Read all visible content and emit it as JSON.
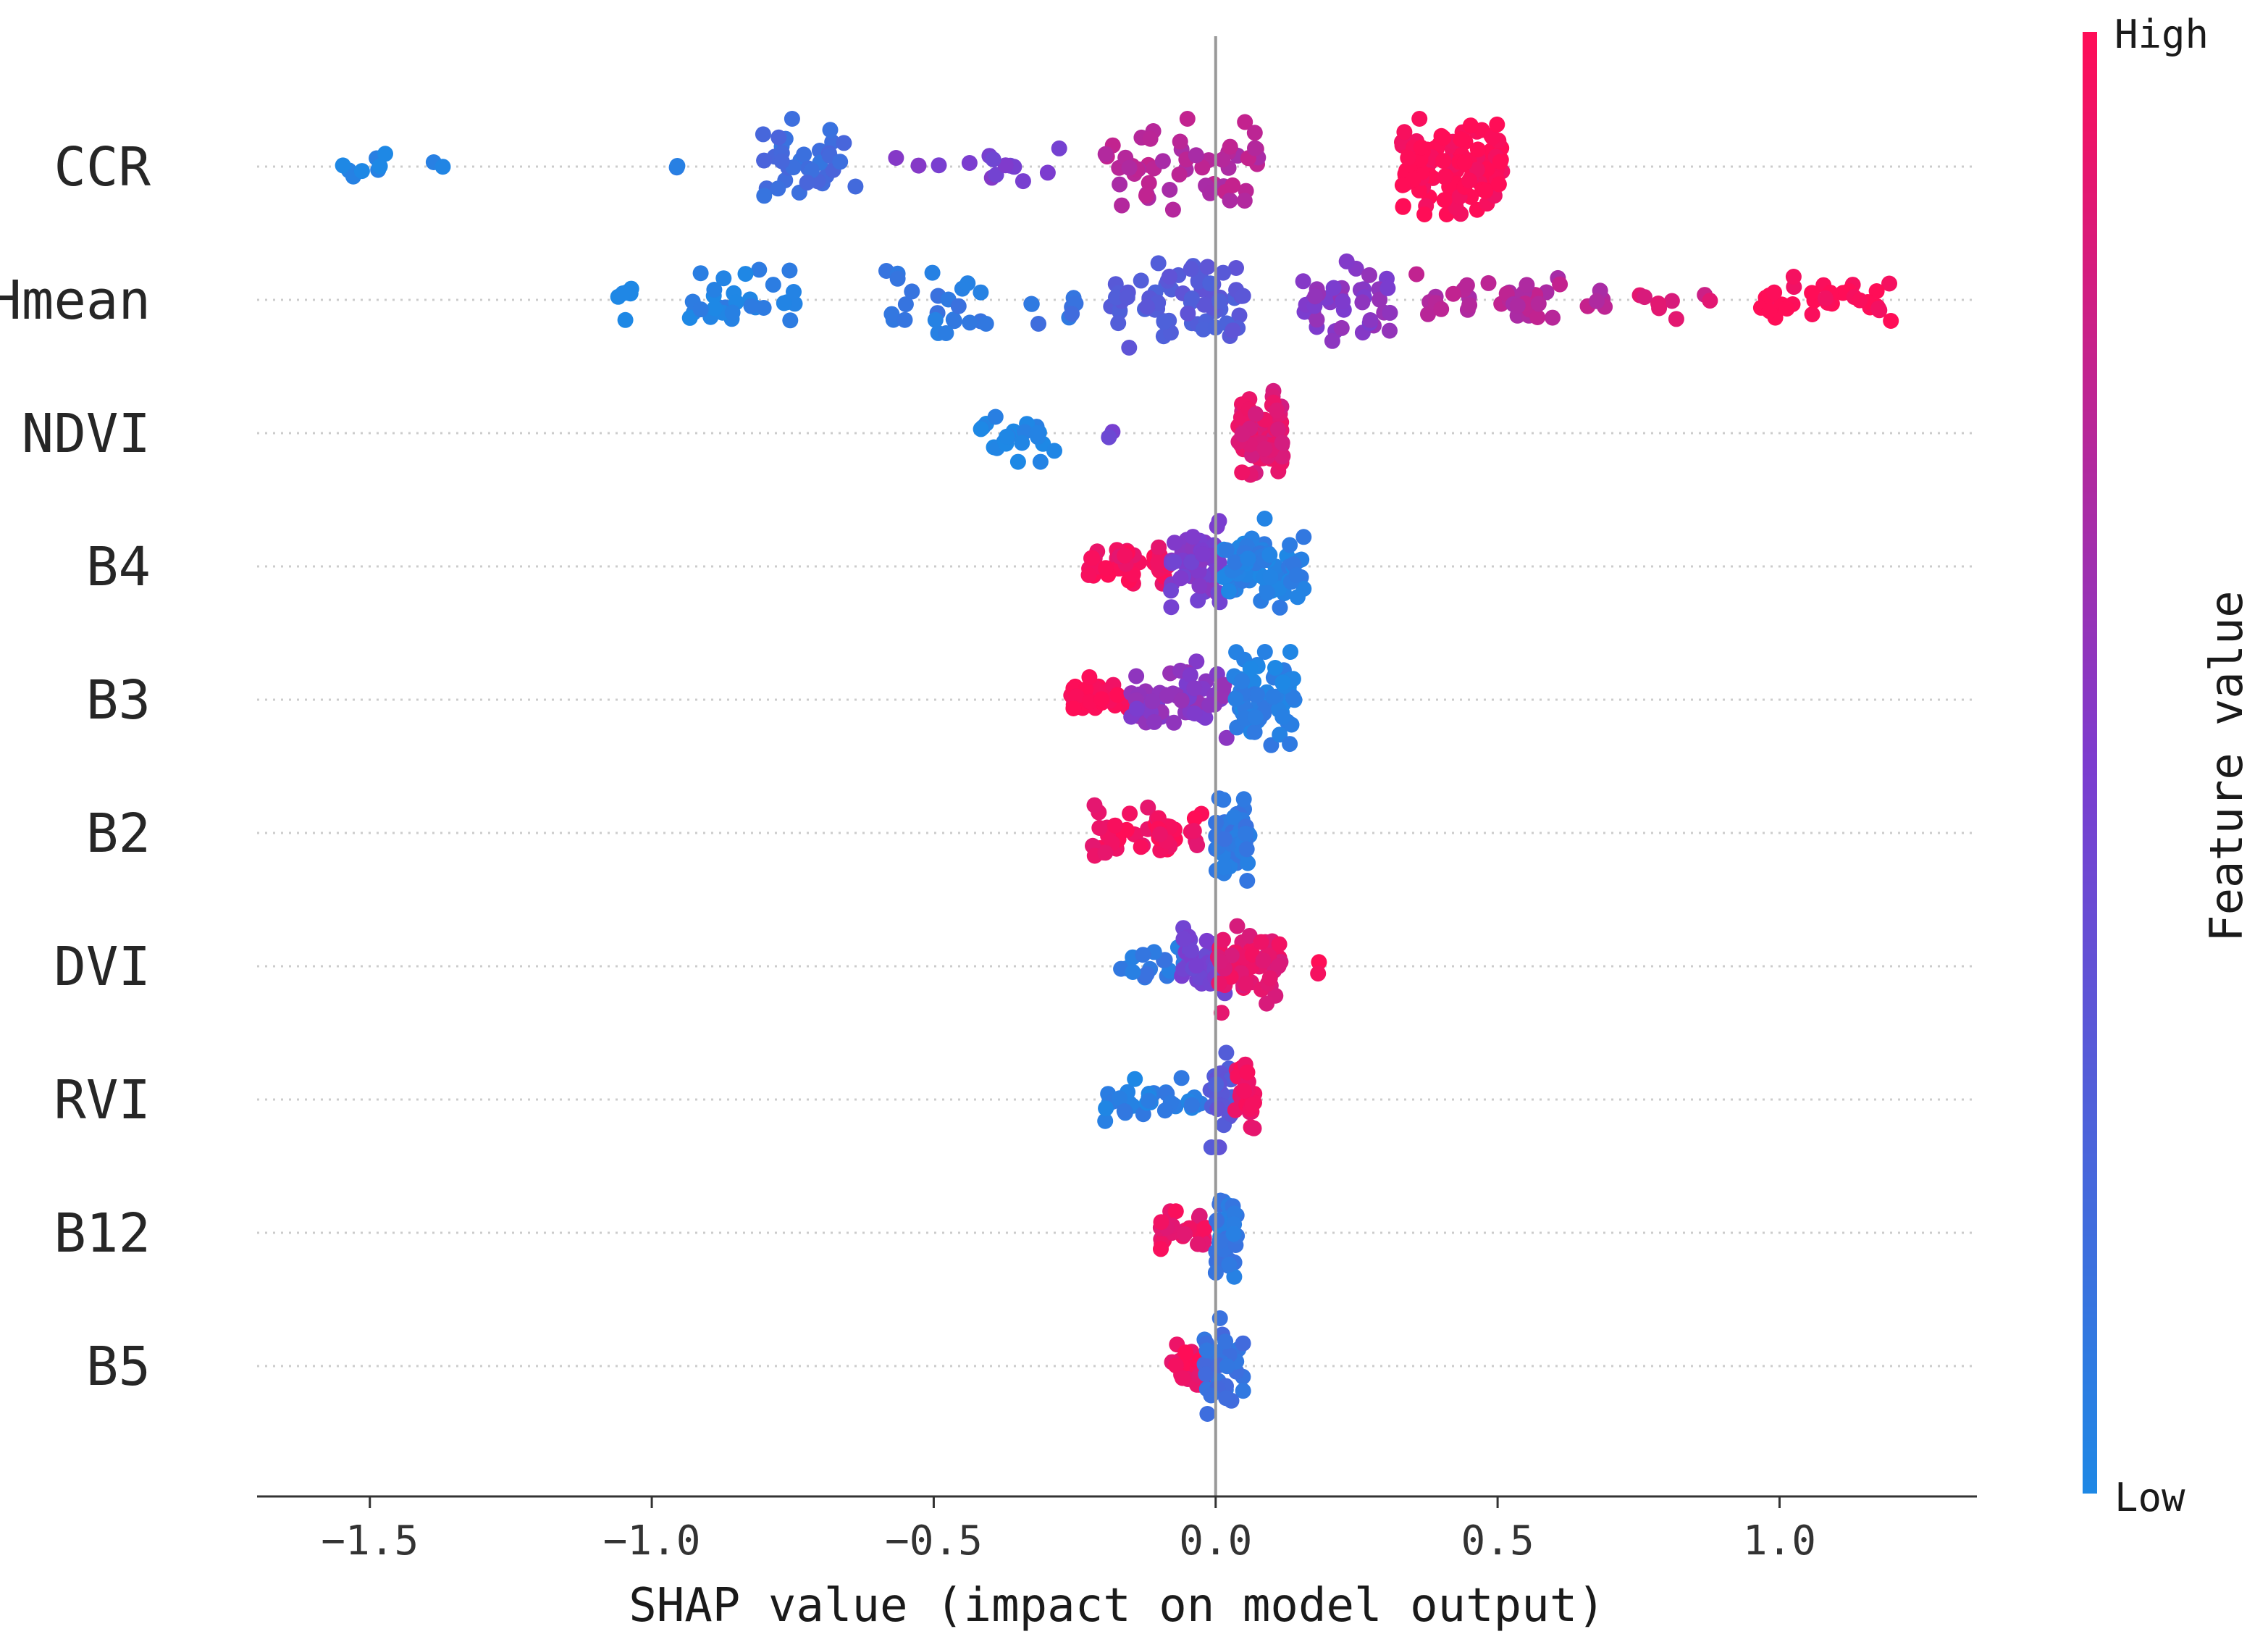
{
  "chart_data": {
    "type": "scatter",
    "subtype": "shap-beeswarm",
    "xlabel": "SHAP value (impact on model output)",
    "xlim": [
      -1.7,
      1.35
    ],
    "xticks": [
      {
        "value": -1.5,
        "label": "−1.5"
      },
      {
        "value": -1.0,
        "label": "−1.0"
      },
      {
        "value": -0.5,
        "label": "−0.5"
      },
      {
        "value": 0.0,
        "label": "0.0"
      },
      {
        "value": 0.5,
        "label": "0.5"
      },
      {
        "value": 1.0,
        "label": "1.0"
      }
    ],
    "colorbar": {
      "high_label": "High",
      "low_label": "Low",
      "title": "Feature value",
      "low_color": "#1E88E5",
      "mid_color": "#7C3CCF",
      "high_color": "#FF0D57"
    },
    "features": [
      {
        "name": "CCR",
        "groups": [
          {
            "x": [
              -1.56,
              -1.45
            ],
            "n": 8,
            "c": 0.0,
            "w": 0.4
          },
          {
            "x": [
              -1.39,
              -1.37
            ],
            "n": 2,
            "c": 0.05,
            "w": 0.2
          },
          {
            "x": [
              -0.96,
              -0.95
            ],
            "n": 2,
            "c": 0.1,
            "w": 0.2
          },
          {
            "x": [
              -0.82,
              -0.62
            ],
            "n": 34,
            "c": 0.18,
            "w": 1.0
          },
          {
            "x": [
              -0.58,
              -0.27
            ],
            "n": 14,
            "c": 0.48,
            "w": 0.4
          },
          {
            "x": [
              -0.2,
              0.08
            ],
            "n": 55,
            "c": 0.72,
            "w": 1.0
          },
          {
            "x": [
              0.33,
              0.51
            ],
            "n": 130,
            "c": 1.0,
            "w": 1.0
          }
        ]
      },
      {
        "name": "Hmean",
        "groups": [
          {
            "x": [
              -1.07,
              -1.02
            ],
            "n": 6,
            "c": 0.0,
            "w": 0.5
          },
          {
            "x": [
              -0.95,
              -0.74
            ],
            "n": 30,
            "c": 0.04,
            "w": 0.7
          },
          {
            "x": [
              -0.6,
              -0.4
            ],
            "n": 24,
            "c": 0.1,
            "w": 0.8
          },
          {
            "x": [
              -0.33,
              -0.24
            ],
            "n": 8,
            "c": 0.15,
            "w": 0.5
          },
          {
            "x": [
              -0.2,
              0.05
            ],
            "n": 70,
            "c": 0.3,
            "w": 1.0
          },
          {
            "x": [
              0.15,
              0.32
            ],
            "n": 40,
            "c": 0.55,
            "w": 1.0
          },
          {
            "x": [
              0.35,
              0.7
            ],
            "n": 38,
            "c": 0.72,
            "w": 0.6
          },
          {
            "x": [
              0.75,
              0.88
            ],
            "n": 8,
            "c": 0.85,
            "w": 0.4
          },
          {
            "x": [
              0.95,
              1.2
            ],
            "n": 34,
            "c": 1.0,
            "w": 0.55
          }
        ]
      },
      {
        "name": "NDVI",
        "groups": [
          {
            "x": [
              -0.43,
              -0.28
            ],
            "n": 24,
            "c": 0.0,
            "w": 0.6
          },
          {
            "x": [
              -0.19,
              -0.18
            ],
            "n": 2,
            "c": 0.45,
            "w": 0.2
          },
          {
            "x": [
              0.04,
              0.12
            ],
            "n": 90,
            "c": 0.88,
            "w": 1.0
          }
        ]
      },
      {
        "name": "B4",
        "groups": [
          {
            "x": [
              -0.23,
              -0.08
            ],
            "n": 40,
            "c": 0.95,
            "w": 0.55
          },
          {
            "x": [
              -0.08,
              0.01
            ],
            "n": 55,
            "c": 0.5,
            "w": 0.95
          },
          {
            "x": [
              0.01,
              0.16
            ],
            "n": 75,
            "c": 0.05,
            "w": 1.0
          }
        ]
      },
      {
        "name": "B3",
        "groups": [
          {
            "x": [
              -0.26,
              -0.15
            ],
            "n": 35,
            "c": 1.0,
            "w": 0.5
          },
          {
            "x": [
              -0.15,
              0.02
            ],
            "n": 55,
            "c": 0.55,
            "w": 0.8
          },
          {
            "x": [
              0.03,
              0.14
            ],
            "n": 70,
            "c": 0.05,
            "w": 1.0
          }
        ]
      },
      {
        "name": "B2",
        "groups": [
          {
            "x": [
              -0.22,
              -0.02
            ],
            "n": 45,
            "c": 0.95,
            "w": 0.6
          },
          {
            "x": [
              0.0,
              0.06
            ],
            "n": 60,
            "c": 0.1,
            "w": 1.0
          }
        ]
      },
      {
        "name": "DVI",
        "groups": [
          {
            "x": [
              -0.17,
              -0.05
            ],
            "n": 20,
            "c": 0.1,
            "w": 0.45
          },
          {
            "x": [
              -0.06,
              0.02
            ],
            "n": 35,
            "c": 0.45,
            "w": 0.8
          },
          {
            "x": [
              0.0,
              0.12
            ],
            "n": 50,
            "c": 0.9,
            "w": 1.0
          },
          {
            "x": [
              0.18,
              0.19
            ],
            "n": 2,
            "c": 1.0,
            "w": 0.2
          }
        ]
      },
      {
        "name": "RVI",
        "groups": [
          {
            "x": [
              -0.2,
              -0.02
            ],
            "n": 35,
            "c": 0.05,
            "w": 0.45
          },
          {
            "x": [
              -0.01,
              0.03
            ],
            "n": 30,
            "c": 0.3,
            "w": 1.0
          },
          {
            "x": [
              0.03,
              0.07
            ],
            "n": 28,
            "c": 0.95,
            "w": 0.85
          }
        ]
      },
      {
        "name": "B12",
        "groups": [
          {
            "x": [
              -0.1,
              -0.01
            ],
            "n": 30,
            "c": 0.92,
            "w": 0.45
          },
          {
            "x": [
              0.0,
              0.04
            ],
            "n": 40,
            "c": 0.1,
            "w": 1.0
          }
        ]
      },
      {
        "name": "B5",
        "groups": [
          {
            "x": [
              -0.08,
              -0.02
            ],
            "n": 20,
            "c": 0.95,
            "w": 0.5
          },
          {
            "x": [
              -0.02,
              0.05
            ],
            "n": 40,
            "c": 0.15,
            "w": 1.0
          }
        ]
      }
    ]
  }
}
